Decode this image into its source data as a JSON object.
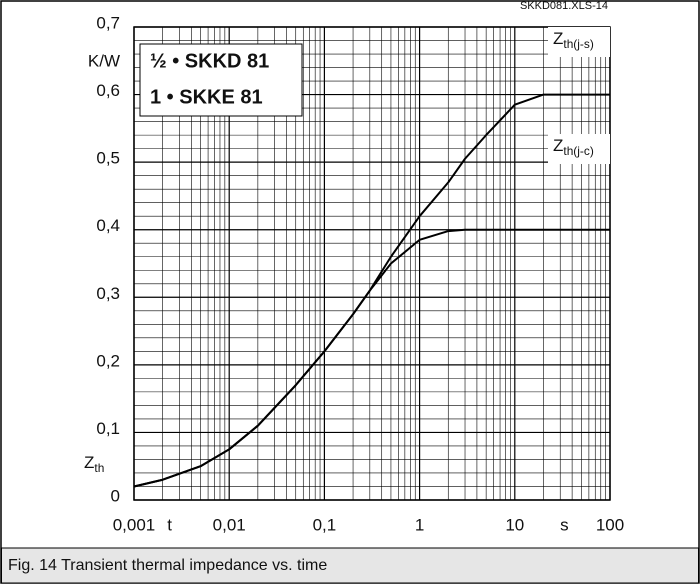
{
  "chart_data": {
    "type": "line",
    "source_note": "SKKD081.XLS-14",
    "annotations": [
      "½ • SKKD 81",
      "1 • SKKE 81"
    ],
    "caption": "Fig. 14 Transient thermal impedance vs. time",
    "y_unit": "K/W",
    "y_symbol": "Zth",
    "x_symbol": "t",
    "x_unit": "s",
    "log_x": true,
    "grid": true,
    "x": [
      0.001,
      0.002,
      0.005,
      0.01,
      0.02,
      0.05,
      0.1,
      0.2,
      0.3,
      0.5,
      1,
      2,
      3,
      5,
      10,
      20,
      100
    ],
    "series": [
      {
        "name": "Zth(j-s)",
        "color": "#000000",
        "values": [
          0.02,
          0.03,
          0.05,
          0.075,
          0.11,
          0.17,
          0.22,
          0.275,
          0.31,
          0.36,
          0.42,
          0.47,
          0.505,
          0.54,
          0.585,
          0.6,
          0.6
        ]
      },
      {
        "name": "Zth(j-c)",
        "color": "#000000",
        "values": [
          0.02,
          0.03,
          0.05,
          0.075,
          0.11,
          0.17,
          0.22,
          0.275,
          0.31,
          0.35,
          0.385,
          0.398,
          0.4,
          0.4,
          0.4,
          0.4,
          0.4
        ]
      }
    ],
    "xlim": [
      0.001,
      100
    ],
    "ylim": [
      0,
      0.7
    ],
    "xticks": [
      {
        "value": 0.001,
        "label": "0,001"
      },
      {
        "value": 0.01,
        "label": "0,01"
      },
      {
        "value": 0.1,
        "label": "0,1"
      },
      1,
      10,
      100
    ],
    "yticks": [
      0,
      {
        "value": 0.1,
        "label": "0,1"
      },
      {
        "value": 0.2,
        "label": "0,2"
      },
      {
        "value": 0.3,
        "label": "0,3"
      },
      {
        "value": 0.4,
        "label": "0,4"
      },
      {
        "value": 0.5,
        "label": "0,5"
      },
      {
        "value": 0.6,
        "label": "0,6"
      },
      {
        "value": 0.7,
        "label": "0,7"
      }
    ],
    "xminorticks": [
      0.002,
      0.003,
      0.004,
      0.005,
      0.006,
      0.007,
      0.008,
      0.009,
      0.02,
      0.03,
      0.04,
      0.05,
      0.06,
      0.07,
      0.08,
      0.09,
      0.2,
      0.3,
      0.4,
      0.5,
      0.6,
      0.7,
      0.8,
      0.9,
      2,
      3,
      4,
      5,
      6,
      7,
      8,
      9,
      20,
      30,
      40,
      50,
      60,
      70,
      80,
      90
    ],
    "yminorticks": [
      0.02,
      0.04,
      0.06,
      0.08,
      0.12,
      0.14,
      0.16,
      0.18,
      0.22,
      0.24,
      0.26,
      0.28,
      0.32,
      0.34,
      0.36,
      0.38,
      0.42,
      0.44,
      0.46,
      0.48,
      0.52,
      0.54,
      0.56,
      0.58,
      0.62,
      0.64,
      0.66,
      0.68
    ]
  }
}
